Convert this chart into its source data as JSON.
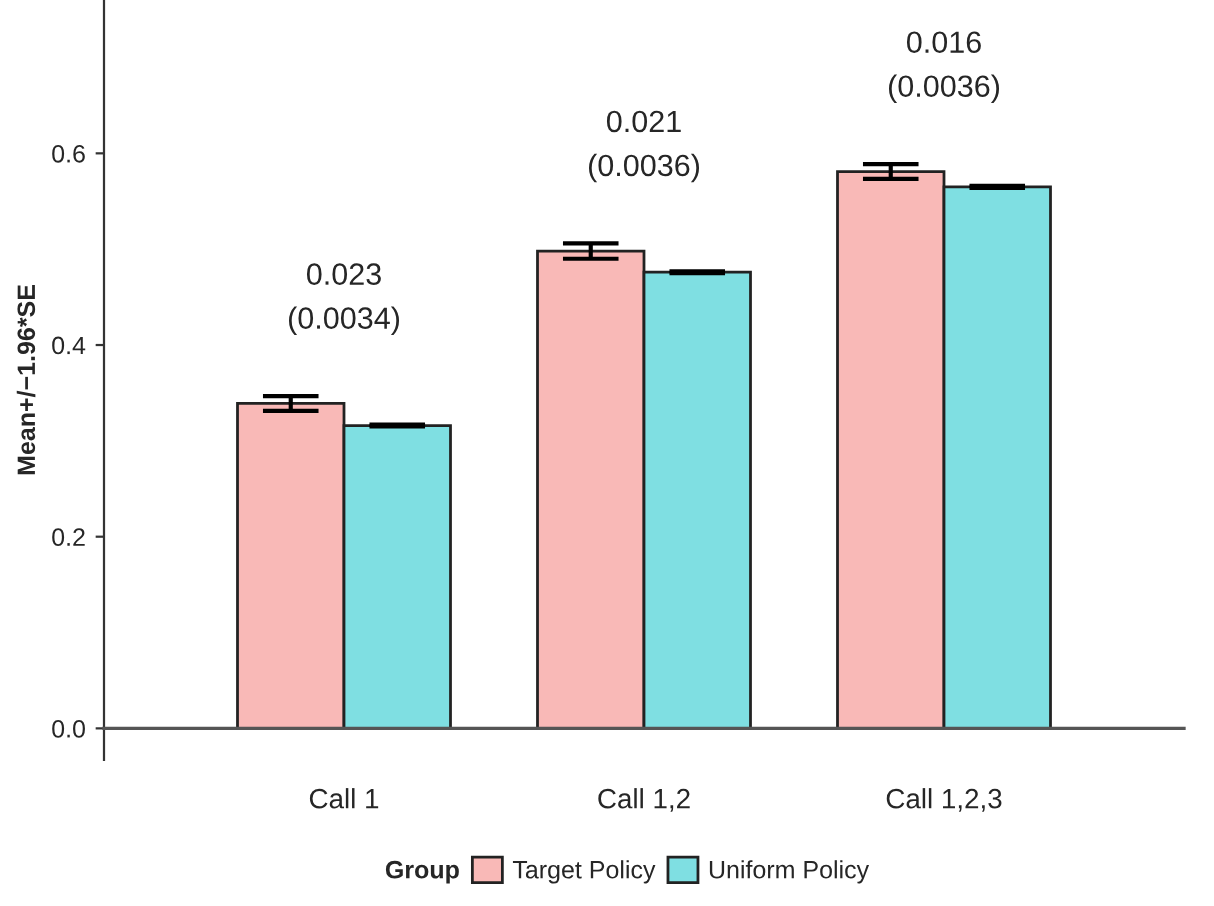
{
  "chart_data": {
    "type": "bar",
    "ylabel": "Mean+/−1.96*SE",
    "legend_title": "Group",
    "categories": [
      "Call 1",
      "Call 1,2",
      "Call 1,2,3"
    ],
    "series": [
      {
        "name": "Target Policy",
        "color": "#f9b9b7",
        "values": [
          0.339,
          0.498,
          0.581
        ],
        "errors": [
          0.0077,
          0.008,
          0.0077
        ]
      },
      {
        "name": "Uniform Policy",
        "color": "#7fdfe2",
        "values": [
          0.316,
          0.476,
          0.565
        ],
        "errors": [
          0.001,
          0.001,
          0.001
        ]
      }
    ],
    "ylim": [
      -0.033,
      0.76
    ],
    "yticks": [
      {
        "value": 0.0,
        "label": "0.0"
      },
      {
        "value": 0.2,
        "label": "0.2"
      },
      {
        "value": 0.4,
        "label": "0.4"
      },
      {
        "value": 0.6,
        "label": "0.6"
      }
    ],
    "annotations": [
      "0.023\n(0.0034)",
      "0.021\n(0.0036)",
      "0.016\n(0.0036)"
    ],
    "grid": false,
    "legend": "bottom"
  }
}
